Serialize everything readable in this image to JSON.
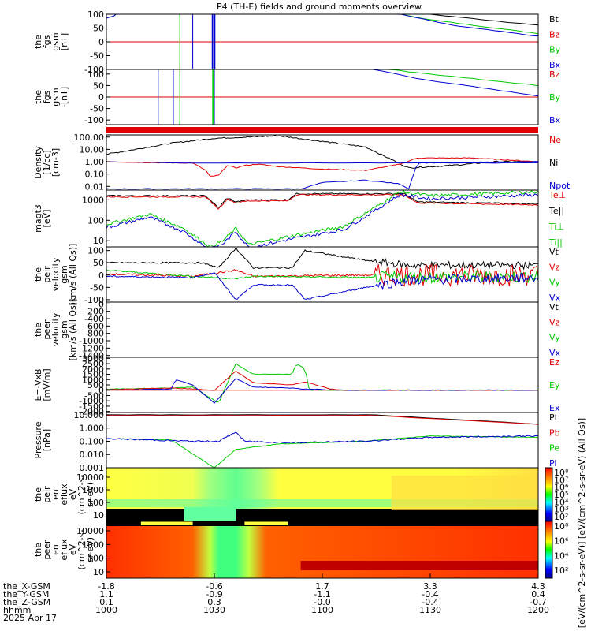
{
  "title": "P4 (TH-E) fields and ground moments overview",
  "colors": {
    "black": "#000000",
    "red": "#e00000",
    "green": "#00c800",
    "blue": "#0000d0"
  },
  "chart_data": [
    {
      "type": "line",
      "id": "panel-fgs-gsm",
      "ylabel": [
        "the",
        "fgs",
        "gsm",
        "[nT]"
      ],
      "yticks": [
        "100",
        "50",
        "0",
        "-50",
        "-100"
      ],
      "ylim": [
        -100,
        100
      ],
      "legend": [
        {
          "name": "Bt",
          "color": "black"
        },
        {
          "name": "Bz",
          "color": "red"
        },
        {
          "name": "By",
          "color": "green"
        },
        {
          "name": "Bx",
          "color": "blue"
        }
      ]
    },
    {
      "type": "line",
      "id": "panel-fgs-gsm-hp",
      "ylabel": [
        "the",
        "fgs",
        "gsm",
        "-[nT]"
      ],
      "yticks": [
        "100",
        "50",
        "0",
        "-50",
        "-100"
      ],
      "ylim": [
        -120,
        120
      ],
      "legend": [
        {
          "name": "Bz",
          "color": "red"
        },
        {
          "name": "By",
          "color": "green"
        },
        {
          "name": "Bx",
          "color": "blue"
        }
      ]
    },
    {
      "type": "bar",
      "id": "panel-mode-bar",
      "note": "mode indicator bar",
      "color": "red"
    },
    {
      "type": "line",
      "id": "panel-density",
      "yscale": "log",
      "ylabel": [
        "Density",
        "[1/cc]",
        "[cm-3]"
      ],
      "yticks": [
        "100.00",
        "10.00",
        "1.00",
        "0.10",
        "0.01"
      ],
      "ylim": [
        0.005,
        150
      ],
      "legend": [
        {
          "name": "Ne",
          "color": "red"
        },
        {
          "name": "Ni",
          "color": "black"
        },
        {
          "name": "Npot",
          "color": "blue"
        }
      ]
    },
    {
      "type": "line",
      "id": "panel-temperature",
      "yscale": "log",
      "ylabel": [
        "magt3",
        "[eV]"
      ],
      "yticks": [
        "1000",
        "100",
        "10"
      ],
      "ylim": [
        5,
        3000
      ],
      "legend": [
        {
          "name": "Te⊥",
          "color": "red"
        },
        {
          "name": "Te||",
          "color": "black"
        },
        {
          "name": "Ti⊥",
          "color": "green"
        },
        {
          "name": "Ti||",
          "color": "green"
        }
      ]
    },
    {
      "type": "line",
      "id": "panel-peir-velocity",
      "ylabel": [
        "the",
        "peir",
        "velocity",
        "gsm",
        "[km/s (All Qs)]"
      ],
      "yticks": [
        "100",
        "50",
        "0",
        "-50",
        "-100"
      ],
      "ylim": [
        -110,
        115
      ],
      "legend": [
        {
          "name": "Vt",
          "color": "black"
        },
        {
          "name": "Vz",
          "color": "red"
        },
        {
          "name": "Vy",
          "color": "green"
        },
        {
          "name": "Vx",
          "color": "blue"
        }
      ]
    },
    {
      "type": "line",
      "id": "panel-peer-velocity",
      "ylabel": [
        "the",
        "peer",
        "velocity",
        "gsm",
        "[km/s (All Qs)]"
      ],
      "yticks": [
        "0",
        "-200",
        "-400",
        "-600",
        "-800",
        "-1000",
        "-1200",
        "-1400"
      ],
      "ylim": [
        -1450,
        50
      ],
      "legend": [
        {
          "name": "Vt",
          "color": "black"
        },
        {
          "name": "Vz",
          "color": "red"
        },
        {
          "name": "Vy",
          "color": "green"
        },
        {
          "name": "Vx",
          "color": "blue"
        }
      ]
    },
    {
      "type": "line",
      "id": "panel-efield",
      "ylabel": [
        "E=-VxB",
        "[mV/m]"
      ],
      "yticks": [
        "3000",
        "2500",
        "2000",
        "1500",
        "1000",
        "500",
        "0",
        "-500",
        "-1000",
        "-1500",
        "-2000"
      ],
      "ylim": [
        -2100,
        3100
      ],
      "legend": [
        {
          "name": "Ez",
          "color": "red"
        },
        {
          "name": "Ey",
          "color": "green"
        },
        {
          "name": "Ex",
          "color": "blue"
        }
      ]
    },
    {
      "type": "line",
      "id": "panel-pressure",
      "yscale": "log",
      "ylabel": [
        "Pressure",
        "[nPa]"
      ],
      "yticks": [
        "10.000",
        "1.000",
        "0.100",
        "0.010",
        "0.001"
      ],
      "ylim": [
        0.001,
        15
      ],
      "legend": [
        {
          "name": "Pt",
          "color": "black"
        },
        {
          "name": "Pb",
          "color": "red"
        },
        {
          "name": "Pe",
          "color": "green"
        },
        {
          "name": "Pi",
          "color": "blue"
        }
      ]
    },
    {
      "type": "heatmap",
      "id": "panel-peir-spectrogram",
      "ylabel": [
        "the",
        "peir",
        "en",
        "eflux",
        "eV",
        "(cm^2-s-",
        "sr-eV)"
      ],
      "yticks": [
        "10000",
        "1000",
        "100",
        "10"
      ]
    },
    {
      "type": "heatmap",
      "id": "panel-peer-spectrogram",
      "ylabel": [
        "the",
        "peer",
        "en",
        "eflux",
        "eV",
        "(cm^2-s-",
        "sr-eV)"
      ],
      "yticks": [
        "10000",
        "1000",
        "100",
        "10"
      ]
    }
  ],
  "colorbar": {
    "ticks_top": [
      "10⁸",
      "10⁷",
      "10⁶",
      "10⁵",
      "10⁴",
      "10³",
      "10²"
    ],
    "ticks_bottom": [
      "10⁸",
      "10⁶",
      "10⁴",
      "10²"
    ],
    "label": "[eV/(cm^2-s-sr-eV)] [eV/(cm^2-s-sr-eV) (All Qs)]"
  },
  "x_axis": {
    "rows": [
      {
        "label": "the_X-GSM",
        "values": [
          "-1.8",
          "-0.6",
          "1.7",
          "3.3",
          "4.3"
        ]
      },
      {
        "label": "the_Y-GSM",
        "values": [
          "1.1",
          "-0.9",
          "-1.1",
          "-0.4",
          "0.4"
        ]
      },
      {
        "label": "the_Z-GSM",
        "values": [
          "0.1",
          "0.3",
          "-0.0",
          "-0.4",
          "-0.7"
        ]
      },
      {
        "label": "hhmm",
        "values": [
          "1000",
          "1030",
          "1100",
          "1130",
          "1200"
        ]
      }
    ],
    "date": "2025 Apr 17"
  }
}
